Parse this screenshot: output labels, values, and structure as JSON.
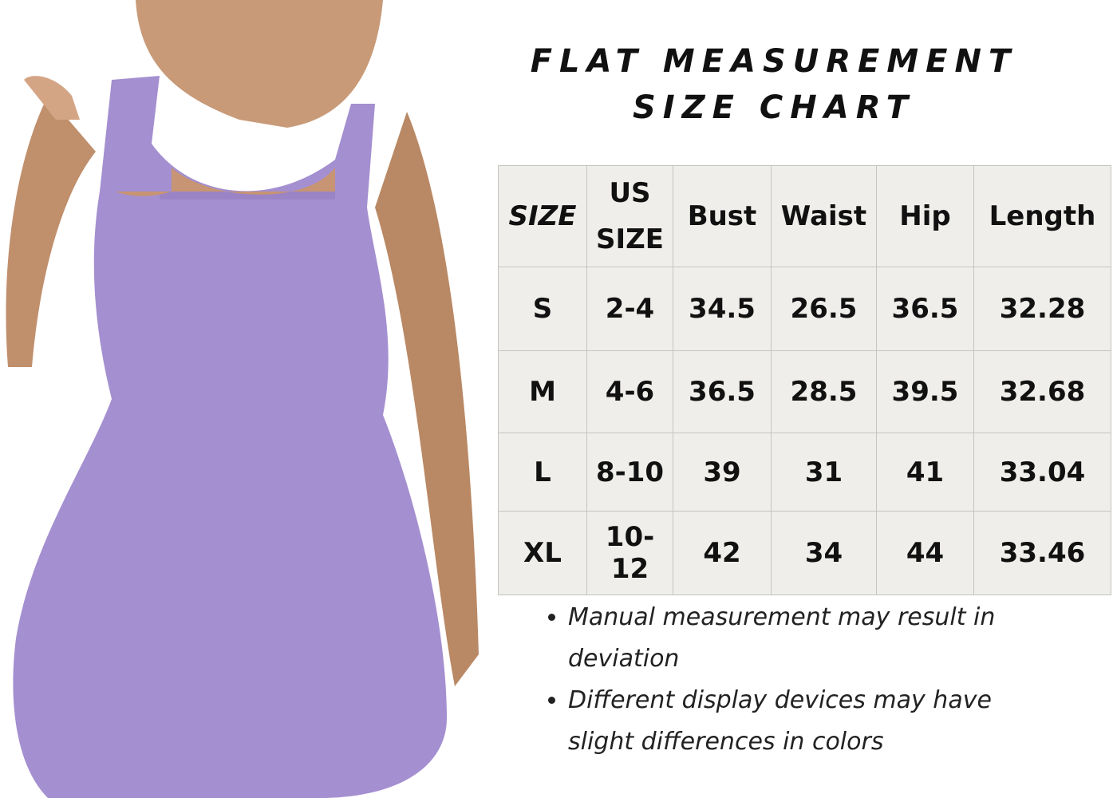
{
  "title": {
    "line1": "FLAT MEASUREMENT",
    "line2": "SIZE CHART"
  },
  "table": {
    "headers": [
      "SIZE",
      "US SIZE",
      "Bust",
      "Waist",
      "Hip",
      "Length"
    ],
    "rows": [
      [
        "S",
        "2-4",
        "34.5",
        "26.5",
        "36.5",
        "32.28"
      ],
      [
        "M",
        "4-6",
        "36.5",
        "28.5",
        "39.5",
        "32.68"
      ],
      [
        "L",
        "8-10",
        "39",
        "31",
        "41",
        "33.04"
      ],
      [
        "XL",
        "10-12",
        "42",
        "34",
        "44",
        "33.46"
      ]
    ]
  },
  "notes": [
    "Manual measurement may result in deviation",
    "Different display devices may have slight differences in colors"
  ],
  "colors": {
    "dress": "#a48fd0",
    "table_bg": "#efeeea",
    "text": "#111111"
  }
}
